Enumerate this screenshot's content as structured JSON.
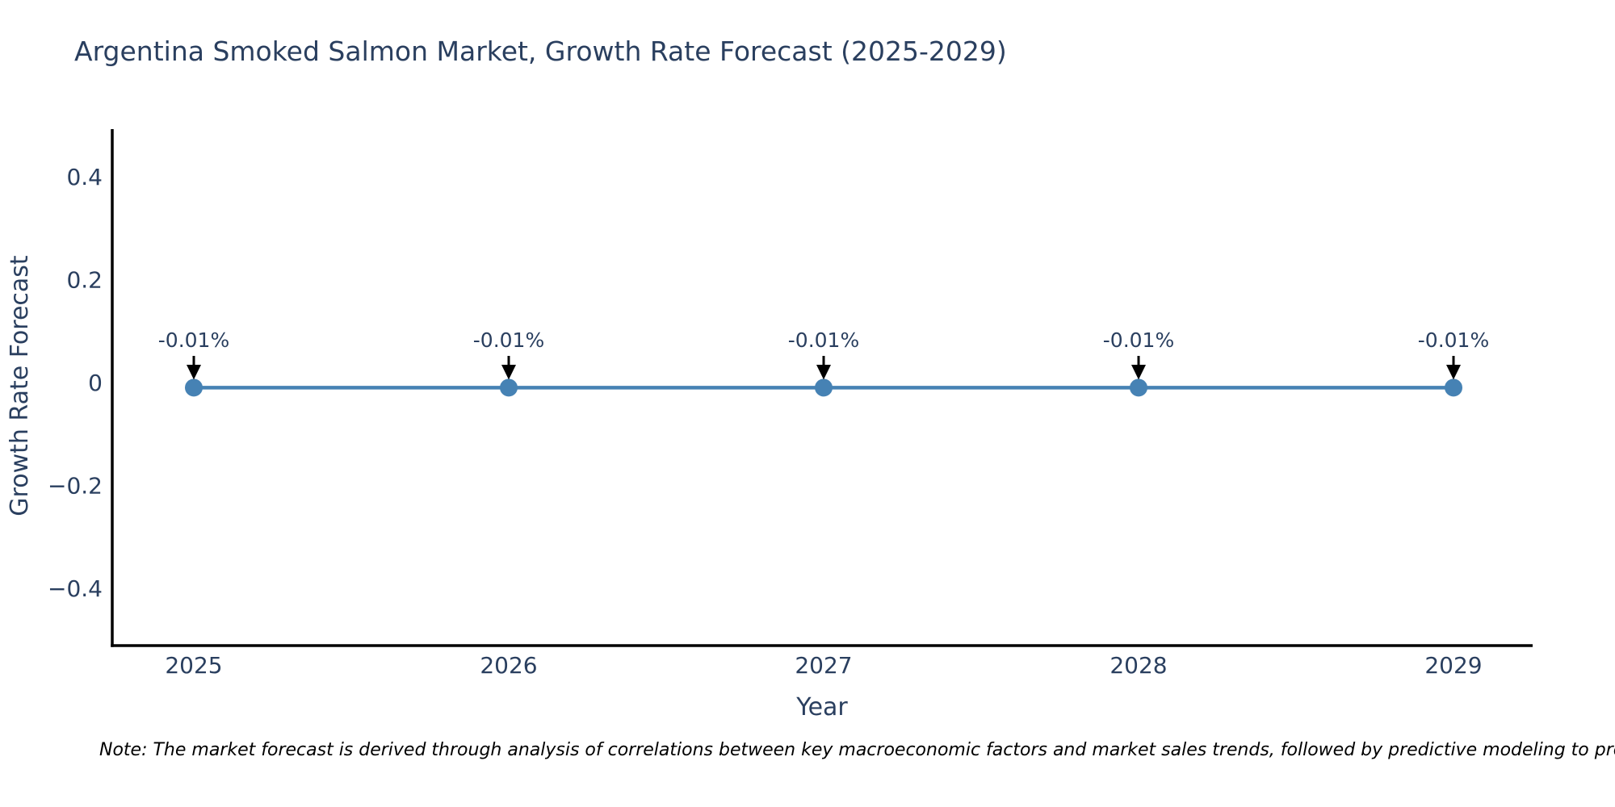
{
  "page": {
    "background": "#ffffff"
  },
  "chart_data": {
    "type": "line",
    "title": "Argentina Smoked Salmon Market, Growth Rate Forecast (2025-2029)",
    "xlabel": "Year",
    "ylabel": "Growth Rate Forecast",
    "x": [
      2025,
      2026,
      2027,
      2028,
      2029
    ],
    "y": [
      -0.01,
      -0.01,
      -0.01,
      -0.01,
      -0.01
    ],
    "point_labels": [
      "-0.01%",
      "-0.01%",
      "-0.01%",
      "-0.01%",
      "-0.01%"
    ],
    "xticks": {
      "values": [
        2025,
        2026,
        2027,
        2028,
        2029
      ],
      "labels": [
        "2025",
        "2026",
        "2027",
        "2028",
        "2029"
      ]
    },
    "yticks": {
      "values": [
        0.4,
        0.2,
        0,
        -0.2,
        -0.4
      ],
      "labels": [
        "0.4",
        "0.2",
        "0",
        "−0.2",
        "−0.4"
      ]
    },
    "ylim": [
      -0.51,
      0.49
    ],
    "grid": false,
    "legend": "none",
    "colors": {
      "line": "#4682b4",
      "marker": "#4682b4",
      "axis_line": "#000000",
      "text": "#2a3f5f",
      "annotation_arrow": "#000000"
    }
  },
  "note": {
    "text": "Note: The market forecast is derived through analysis of correlations between key macroeconomic factors and market sales trends, followed by predictive modeling to project future sales"
  }
}
